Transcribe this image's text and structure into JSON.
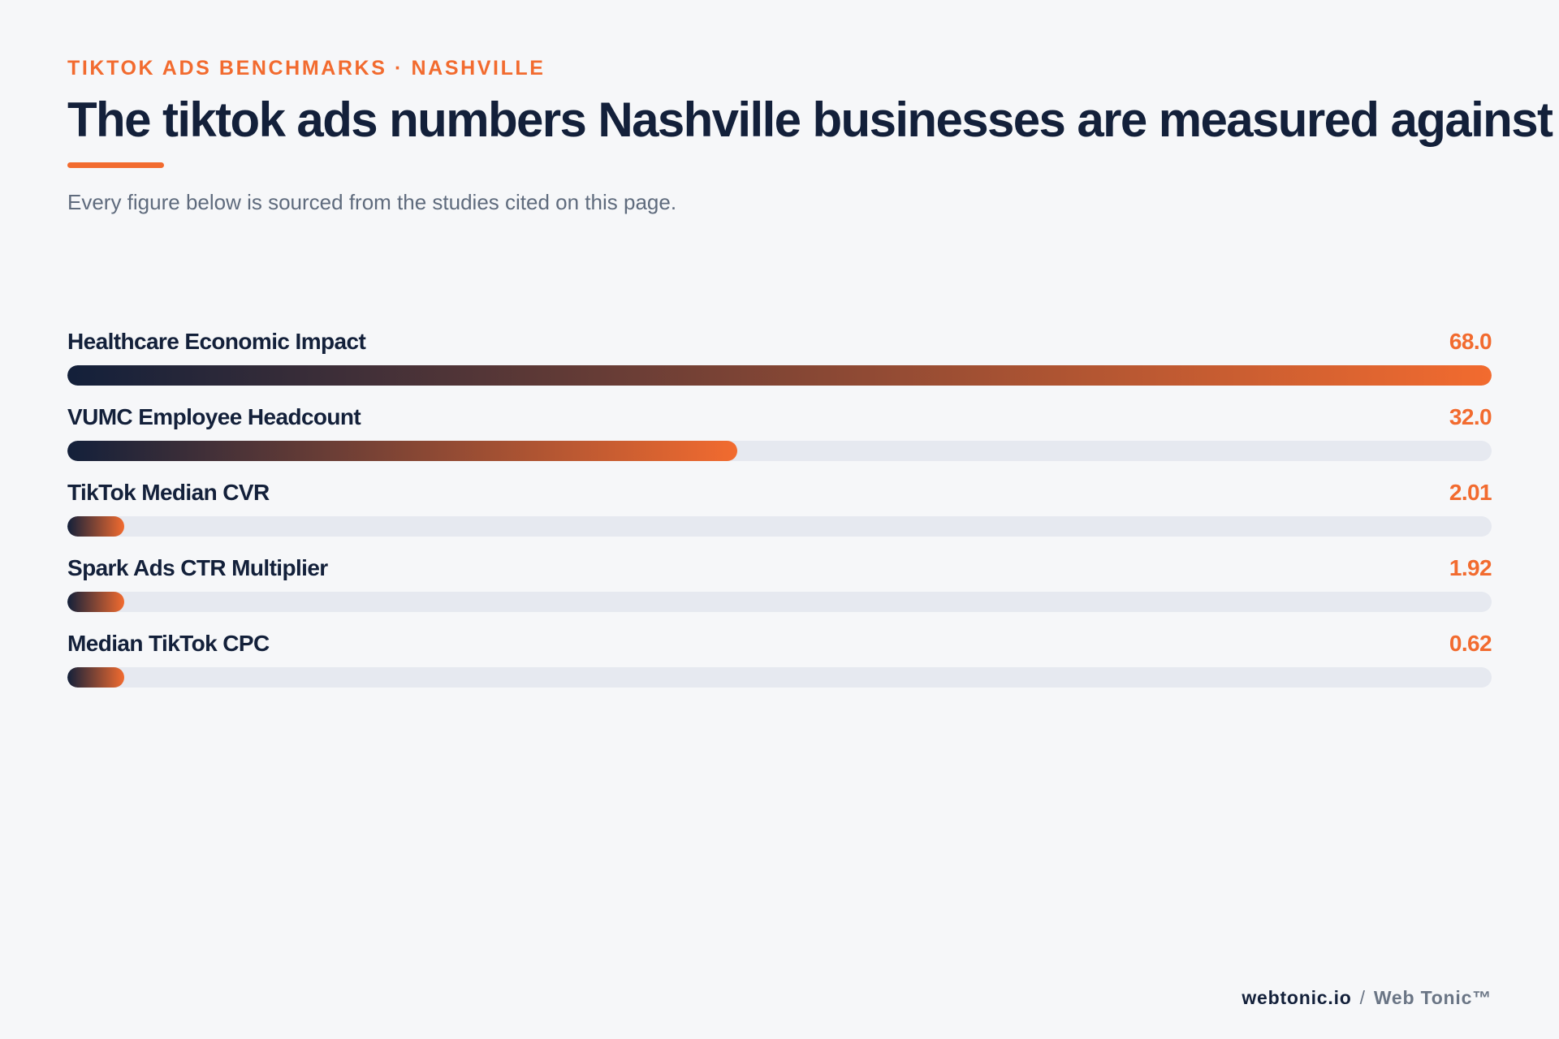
{
  "header": {
    "eyebrow": "TIKTOK ADS BENCHMARKS · NASHVILLE",
    "title": "The tiktok ads numbers Nashville businesses are measured against",
    "subtitle": "Every figure below is sourced from the studies cited on this page."
  },
  "chart_data": {
    "type": "bar",
    "orientation": "horizontal",
    "title": "The tiktok ads numbers Nashville businesses are measured against",
    "categories": [
      "Healthcare Economic Impact",
      "VUMC Employee Headcount",
      "TikTok Median CVR",
      "Spark Ads CTR Multiplier",
      "Median TikTok CPC"
    ],
    "values": [
      68.0,
      32.0,
      2.01,
      1.92,
      0.62
    ],
    "value_labels": [
      "68.0",
      "32.0",
      "2.01",
      "1.92",
      "0.62"
    ],
    "xlim": [
      0,
      68.0
    ],
    "grid": false,
    "colors": {
      "bar_start": "#13203a",
      "bar_end": "#f26b2f",
      "track": "#e6e9f0",
      "value_text": "#f26b2f"
    }
  },
  "footer": {
    "site": "webtonic.io",
    "separator": "/",
    "brand": "Web Tonic™"
  }
}
